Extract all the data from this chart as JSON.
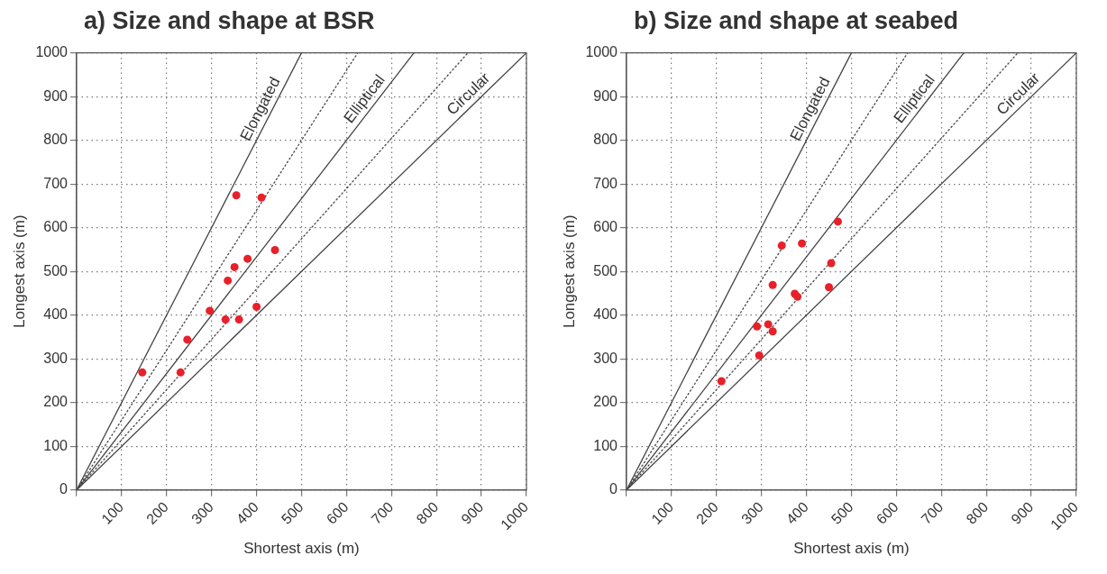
{
  "chart_data": [
    {
      "type": "scatter",
      "title": "a) Size and shape at BSR",
      "xlabel": "Shortest axis (m)",
      "ylabel": "Longest axis (m)",
      "xlim": [
        0,
        1000
      ],
      "ylim": [
        0,
        1000
      ],
      "xticks": [
        {
          "value": 0,
          "label": null
        },
        100,
        200,
        300,
        400,
        500,
        600,
        700,
        800,
        900,
        1000
      ],
      "yticks": [
        0,
        100,
        200,
        300,
        400,
        500,
        600,
        700,
        800,
        900,
        1000
      ],
      "grid": true,
      "series": [
        {
          "type": "line",
          "name": "Elongated",
          "color": "#454545",
          "x": [
            0,
            500
          ],
          "values": [
            0,
            1000
          ],
          "marker": "none",
          "line_style": "solid"
        },
        {
          "type": "line",
          "color": "#454545",
          "x": [
            0,
            625
          ],
          "values": [
            0,
            1000
          ],
          "marker": "none",
          "line_style": "dotted"
        },
        {
          "type": "line",
          "name": "Elliptical",
          "color": "#454545",
          "x": [
            0,
            750
          ],
          "values": [
            0,
            1000
          ],
          "marker": "none",
          "line_style": "solid"
        },
        {
          "type": "line",
          "color": "#454545",
          "x": [
            0,
            870
          ],
          "values": [
            0,
            1000
          ],
          "marker": "none",
          "line_style": "dotted"
        },
        {
          "type": "line",
          "name": "Circular",
          "color": "#454545",
          "x": [
            0,
            1000
          ],
          "values": [
            0,
            1000
          ],
          "marker": "none",
          "line_style": "solid"
        },
        {
          "type": "scatter",
          "color": "#e8202a",
          "marker": "circle",
          "x": [
            355,
            411,
            441,
            380,
            351,
            336,
            296,
            400,
            331,
            361,
            246,
            146,
            231
          ],
          "values": [
            674,
            669,
            549,
            529,
            510,
            479,
            410,
            419,
            390,
            390,
            344,
            269,
            269
          ]
        }
      ]
    },
    {
      "type": "scatter",
      "title": "b) Size and shape at seabed",
      "xlabel": "Shortest axis (m)",
      "ylabel": "Longest axis (m)",
      "xlim": [
        0,
        1000
      ],
      "ylim": [
        0,
        1000
      ],
      "xticks": [
        {
          "value": 0,
          "label": null
        },
        100,
        200,
        300,
        400,
        500,
        600,
        700,
        800,
        900,
        1000
      ],
      "yticks": [
        0,
        100,
        200,
        300,
        400,
        500,
        600,
        700,
        800,
        900,
        1000
      ],
      "grid": true,
      "series": [
        {
          "type": "line",
          "name": "Elongated",
          "color": "#454545",
          "x": [
            0,
            500
          ],
          "values": [
            0,
            1000
          ],
          "marker": "none",
          "line_style": "solid"
        },
        {
          "type": "line",
          "color": "#454545",
          "x": [
            0,
            625
          ],
          "values": [
            0,
            1000
          ],
          "marker": "none",
          "line_style": "dotted"
        },
        {
          "type": "line",
          "name": "Elliptical",
          "color": "#454545",
          "x": [
            0,
            750
          ],
          "values": [
            0,
            1000
          ],
          "marker": "none",
          "line_style": "solid"
        },
        {
          "type": "line",
          "color": "#454545",
          "x": [
            0,
            870
          ],
          "values": [
            0,
            1000
          ],
          "marker": "none",
          "line_style": "dotted"
        },
        {
          "type": "line",
          "name": "Circular",
          "color": "#454545",
          "x": [
            0,
            1000
          ],
          "values": [
            0,
            1000
          ],
          "marker": "none",
          "line_style": "solid"
        },
        {
          "type": "scatter",
          "color": "#e8202a",
          "marker": "circle",
          "x": [
            470,
            345,
            390,
            455,
            325,
            374,
            380,
            450,
            290,
            315,
            325,
            295,
            211
          ],
          "values": [
            614,
            559,
            564,
            519,
            469,
            449,
            442,
            464,
            374,
            379,
            363,
            308,
            249
          ]
        }
      ]
    }
  ]
}
